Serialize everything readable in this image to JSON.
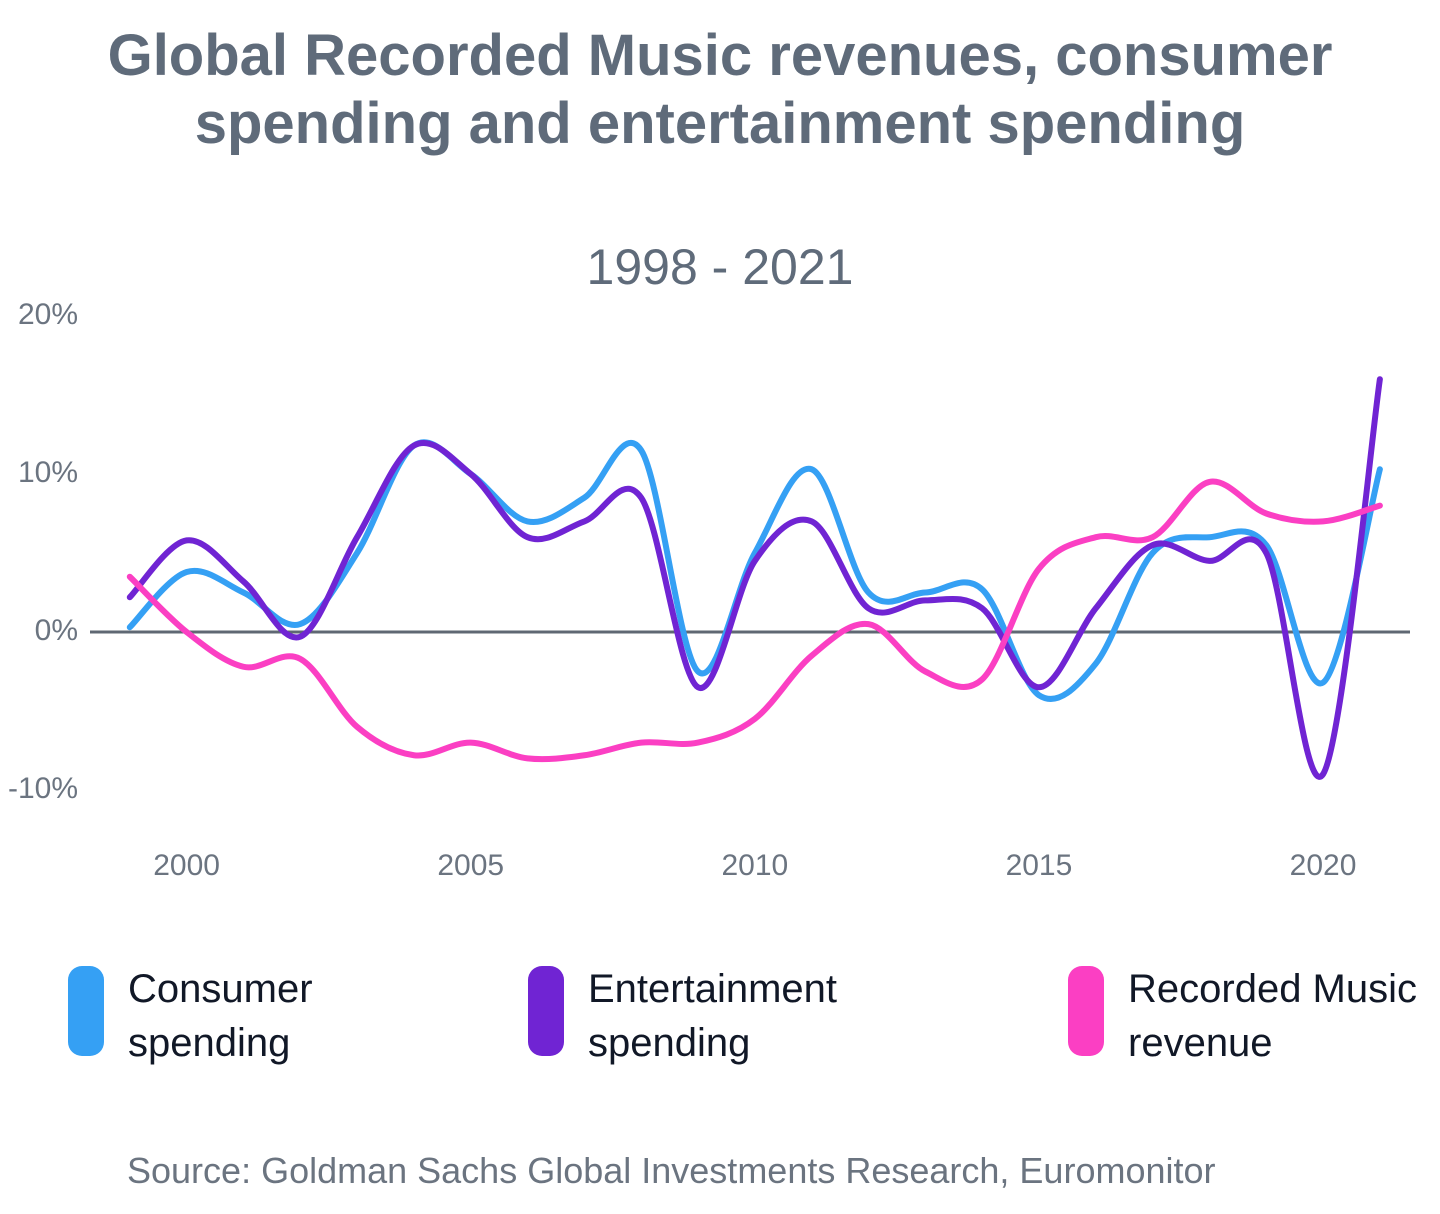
{
  "chart_data": {
    "type": "line",
    "title": "Global Recorded Music revenues, consumer spending and entertainment spending",
    "subtitle": "1998 - 2021",
    "x": [
      1999,
      2000,
      2001,
      2002,
      2003,
      2004,
      2005,
      2006,
      2007,
      2008,
      2009,
      2010,
      2011,
      2012,
      2013,
      2014,
      2015,
      2016,
      2017,
      2018,
      2019,
      2020,
      2021
    ],
    "series": [
      {
        "name": "Consumer spending",
        "color": "#35a0f4",
        "values": [
          0.3,
          3.8,
          2.5,
          0.5,
          5,
          11.8,
          10,
          7,
          8.5,
          11.5,
          -2.5,
          5,
          10.3,
          2.5,
          2.5,
          2.7,
          -4,
          -2,
          5,
          6,
          5.5,
          -3.2,
          10.3
        ]
      },
      {
        "name": "Entertainment spending",
        "color": "#7024d3",
        "values": [
          2.2,
          5.8,
          3.2,
          -0.3,
          6,
          11.8,
          10,
          6,
          7,
          8.5,
          -3.5,
          4.5,
          7,
          1.5,
          2,
          1.5,
          -3.5,
          1.5,
          5.5,
          4.5,
          5,
          -9,
          16
        ]
      },
      {
        "name": "Recorded Music revenue",
        "color": "#fb3fc3",
        "values": [
          3.5,
          0,
          -2.2,
          -1.7,
          -6,
          -7.8,
          -7,
          -8,
          -7.8,
          -7,
          -7,
          -5.5,
          -1.5,
          0.5,
          -2.5,
          -3,
          4,
          6,
          6,
          9.5,
          7.5,
          7,
          8
        ]
      }
    ],
    "xlim": [
      1998.3,
      2021.53
    ],
    "xticks": [
      2000,
      2005,
      2010,
      2015,
      2020
    ],
    "ylim": [
      -10,
      20
    ],
    "yticks": [
      {
        "value": -10,
        "label": "-10%"
      },
      {
        "value": 0,
        "label": "0%"
      },
      {
        "value": 10,
        "label": "10%"
      },
      {
        "value": 20,
        "label": "20%"
      }
    ],
    "source": "Source: Goldman Sachs Global Investments Research, Euromonitor"
  }
}
